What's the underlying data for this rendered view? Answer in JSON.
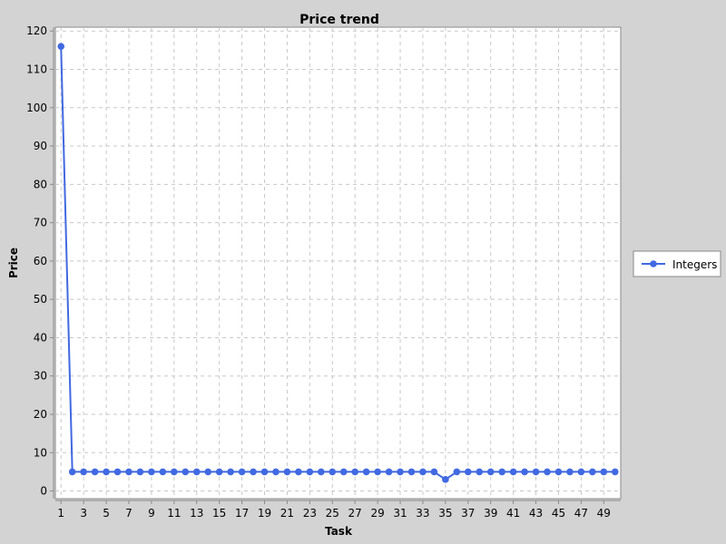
{
  "chart_data": {
    "type": "line",
    "title": "Price trend",
    "xlabel": "Task",
    "ylabel": "Price",
    "xlim": [
      0.5,
      50.5
    ],
    "ylim": [
      -2,
      121
    ],
    "x_ticks": [
      1,
      3,
      5,
      7,
      9,
      11,
      13,
      15,
      17,
      19,
      21,
      23,
      25,
      27,
      29,
      31,
      33,
      35,
      37,
      39,
      41,
      43,
      45,
      47,
      49
    ],
    "y_ticks": [
      0,
      10,
      20,
      30,
      40,
      50,
      60,
      70,
      80,
      90,
      100,
      110,
      120
    ],
    "grid": true,
    "legend_position": "right",
    "series": [
      {
        "name": "Integers",
        "color": "#4169e1",
        "x": [
          1,
          2,
          3,
          4,
          5,
          6,
          7,
          8,
          9,
          10,
          11,
          12,
          13,
          14,
          15,
          16,
          17,
          18,
          19,
          20,
          21,
          22,
          23,
          24,
          25,
          26,
          27,
          28,
          29,
          30,
          31,
          32,
          33,
          34,
          35,
          36,
          37,
          38,
          39,
          40,
          41,
          42,
          43,
          44,
          45,
          46,
          47,
          48,
          49,
          50
        ],
        "values": [
          116,
          5,
          5,
          5,
          5,
          5,
          5,
          5,
          5,
          5,
          5,
          5,
          5,
          5,
          5,
          5,
          5,
          5,
          5,
          5,
          5,
          5,
          5,
          5,
          5,
          5,
          5,
          5,
          5,
          5,
          5,
          5,
          5,
          5,
          3,
          5,
          5,
          5,
          5,
          5,
          5,
          5,
          5,
          5,
          5,
          5,
          5,
          5,
          5,
          5
        ]
      }
    ]
  }
}
